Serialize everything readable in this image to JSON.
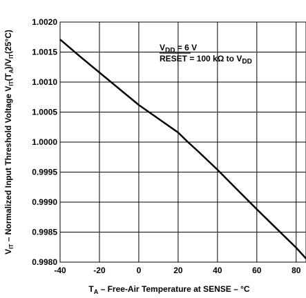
{
  "chart_data": {
    "type": "line",
    "xlabel": {
      "main": "T",
      "sub": "A",
      "rest": " – Free-Air Temperature at SENSE – °C"
    },
    "ylabel": {
      "parts": [
        {
          "t": "V",
          "sub": false
        },
        {
          "t": "IT",
          "sub": true
        },
        {
          "t": " – Normalized Input Threshold Voltage V",
          "sub": false
        },
        {
          "t": "IT",
          "sub": true
        },
        {
          "t": "(T",
          "sub": false
        },
        {
          "t": "A",
          "sub": true
        },
        {
          "t": ")/V",
          "sub": false
        },
        {
          "t": "IT",
          "sub": true
        },
        {
          "t": "(25°C)",
          "sub": false
        }
      ]
    },
    "xlim": [
      -40,
      85
    ],
    "ylim": [
      0.998,
      1.002
    ],
    "xticks": [
      "-40",
      "-20",
      "0",
      "20",
      "40",
      "60",
      "80"
    ],
    "xtick_values": [
      -40,
      -20,
      0,
      20,
      40,
      60,
      80
    ],
    "yticks": [
      "0.9980",
      "0.9985",
      "0.9990",
      "0.9995",
      "1.0000",
      "1.0005",
      "1.0010",
      "1.0015",
      "1.0020"
    ],
    "ytick_values": [
      0.998,
      0.9985,
      0.999,
      0.9995,
      1.0,
      1.0005,
      1.001,
      1.0015,
      1.002
    ],
    "grid": true,
    "annotations": {
      "line1": {
        "main": "V",
        "sub": "DD",
        "rest": " = 6 V"
      },
      "line2": {
        "over": "RESET",
        "rest": " = 100 kΩ to V",
        "sub": "DD"
      }
    },
    "series": [
      {
        "x": [
          -40,
          -30,
          -20,
          -10,
          0,
          10,
          20,
          25,
          30,
          40,
          50,
          60,
          70,
          80,
          85
        ],
        "y": [
          1.00171,
          1.00143,
          1.00116,
          1.00089,
          1.00062,
          1.00039,
          1.00016,
          1.0,
          0.99985,
          0.99954,
          0.99921,
          0.99888,
          0.99856,
          0.99824,
          0.99806
        ]
      }
    ]
  }
}
